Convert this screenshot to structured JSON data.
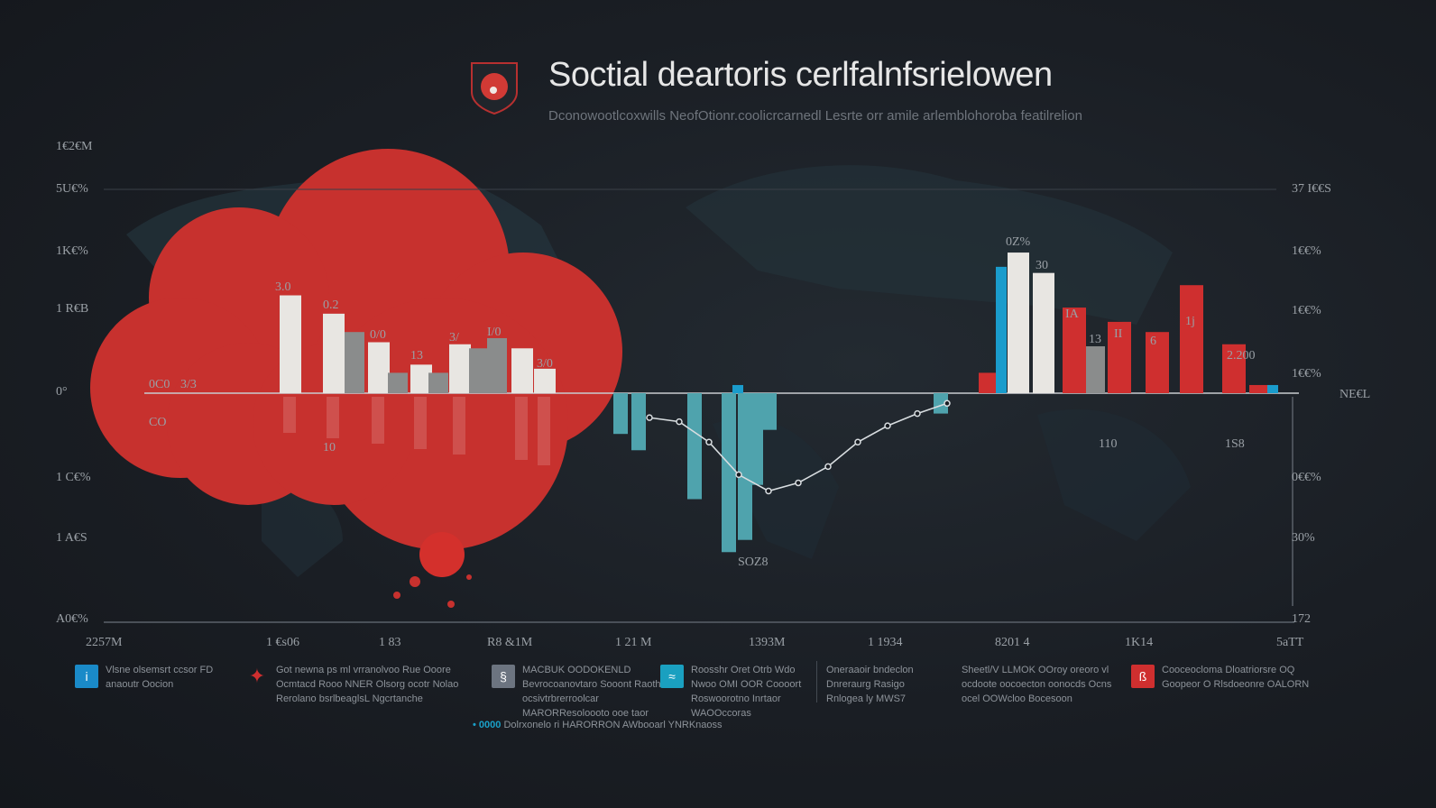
{
  "header": {
    "title": "Soctial deartoris cerlfalnfsrielowen",
    "subtitle": "Dconowootlcoxwills NeofOtionr.coolicrcarnedl Lesrte orr amile arlemblohoroba featilrelion"
  },
  "chart_data": {
    "type": "bar",
    "title": "Soctial deartoris cerlfalnfsrielowen",
    "ylim": [
      -110,
      110
    ],
    "left_axis_labels": [
      "1€2€M",
      "5U€%",
      "1K€%",
      "1 R€B",
      "0°",
      "1 C€%",
      "1 A€S",
      "A0€%"
    ],
    "right_axis_labels": [
      "37 I€€S",
      "1€€%",
      "1€€%",
      "1€€%",
      "NE€L",
      "0€€%",
      "30%",
      "172"
    ],
    "x_tick_labels": [
      "2257M",
      "1 €s06",
      "1 83",
      "R8 &1M",
      "1 21 M",
      "1393M",
      "1 1934",
      "8201 4",
      "1K14",
      "5aTT"
    ],
    "series": [
      {
        "name": "white",
        "color": "#e8e6e2",
        "values": [
          48,
          39,
          25,
          14,
          24,
          22,
          12,
          69,
          59,
          34
        ]
      },
      {
        "name": "gray",
        "color": "#8a8c8c",
        "values": [
          30,
          10,
          10,
          22,
          27,
          23
        ]
      },
      {
        "name": "red",
        "color": "#cf2f2f",
        "values": [
          10,
          42,
          35,
          30,
          53,
          24,
          4
        ]
      },
      {
        "name": "blue",
        "color": "#1a9ccc",
        "values": [
          62,
          4,
          4
        ]
      },
      {
        "name": "teal-negative",
        "color": "#4fa3ad",
        "values": [
          -20,
          -28,
          -52,
          -78,
          -72,
          -45,
          -18,
          -10
        ]
      },
      {
        "name": "trend-line",
        "color": "#d8dde0",
        "values": [
          -12,
          -14,
          -24,
          -40,
          -48,
          -44,
          -36,
          -24,
          -16,
          -10,
          -5
        ]
      }
    ],
    "data_labels": [
      "0Z%",
      "30",
      "0C0",
      "3/3",
      "3.0",
      "0.2",
      "0/0",
      "13",
      "3/",
      "I/0",
      "3/0",
      "IA",
      "13",
      "II",
      "6",
      "1j",
      "2.200",
      "110",
      "1S8",
      "SOZ8",
      "CO",
      "10"
    ],
    "grid": true
  },
  "legend": {
    "items": [
      {
        "icon": "info-icon",
        "color": "#1a8ac8",
        "glyph": "i",
        "text": "Vlsne olsemsrt ccsor FD anaoutr Oocion"
      },
      {
        "icon": "twitter-bird-icon",
        "color": "#cf2f2f",
        "glyph": "🐦",
        "text": "Got newna ps ml vrranolvoo Rue Ooore Ocmtacd Rooo NNER Olsorg ocotr Nolao Rerolano bsrlbeaglsL Ngcrtanche"
      },
      {
        "icon": "document-icon",
        "color": "#6c7480",
        "glyph": "§",
        "text": "MACBUK OODOKENLD Bevrocoanovtaro Sooont Raothe ocsivtrbrerroolcar MARORResoloooto ooe taor"
      },
      {
        "icon": "chart-icon",
        "color": "#1aa0c0",
        "glyph": "≈",
        "text": "Roosshr Oret Otrb Wdo Nwoo OMI OOR Coooort Roswoorotno Inrtaor WAOOccoras"
      },
      {
        "icon": "",
        "color": "",
        "glyph": "",
        "text": "Oneraaoir bndeclon Dnreraurg Rasigo Rnlogea ly MWS7"
      },
      {
        "icon": "",
        "color": "",
        "glyph": "",
        "text": "Sheetl/V LLMOK OOroy oreoro vl ocdoote oocoecton oonocds Ocns ocel OOWcloo Bocesoon"
      },
      {
        "icon": "bookmark-icon",
        "color": "#cf2f2f",
        "glyph": "ß",
        "text": "Cooceocloma Dloatriorsre OQ Goopeor O Rlsdoeonre OALORN"
      }
    ],
    "footer": "Dolrxonelo ri HARORRON AWbooarl YNRKnaoss",
    "footer_marker": "• 0000"
  }
}
